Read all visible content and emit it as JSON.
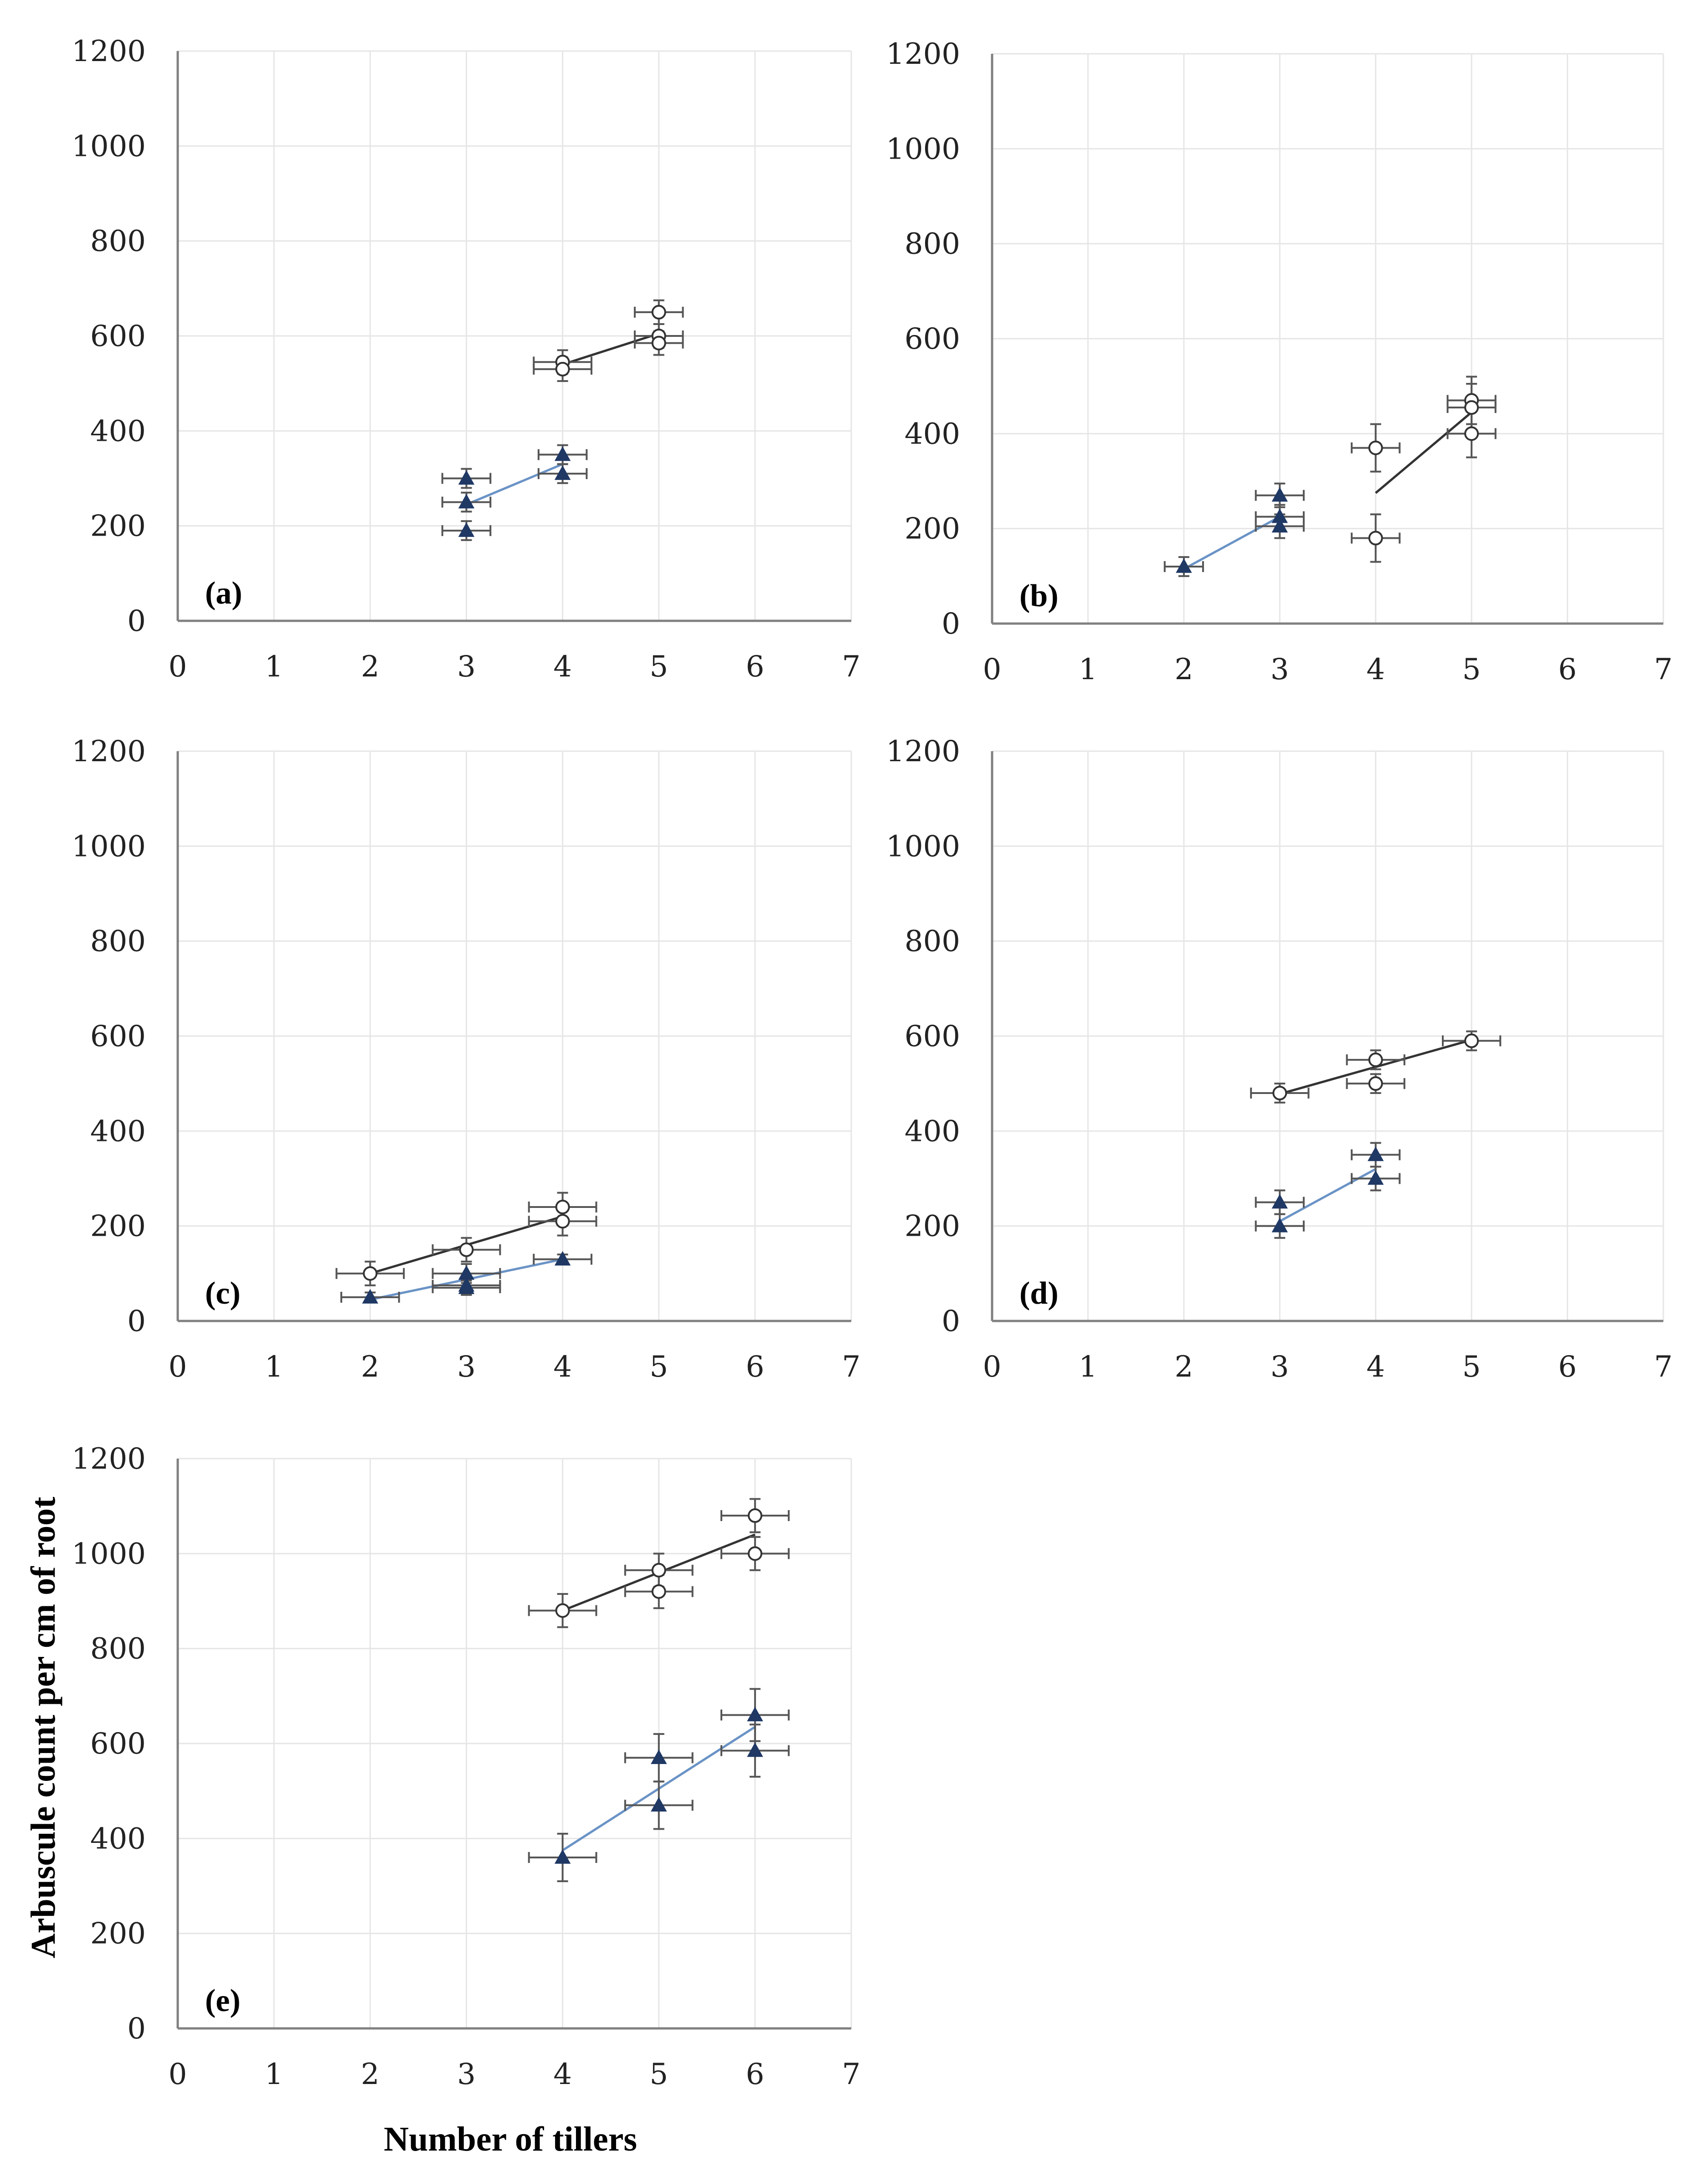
{
  "figure": {
    "ylabel": "Arbuscule count per cm of root",
    "xlabel": "Number of tillers"
  },
  "chart_data": [
    {
      "panel": "(a)",
      "type": "scatter",
      "xlim": [
        0,
        7
      ],
      "ylim": [
        0,
        1200
      ],
      "x_ticks": [
        "0",
        "1",
        "2",
        "3",
        "4",
        "5",
        "6",
        "7"
      ],
      "y_ticks": [
        "0",
        "200",
        "400",
        "600",
        "800",
        "1000",
        "1200"
      ],
      "grid": true,
      "series": [
        {
          "name": "open-circles",
          "marker": "circle-open",
          "color": "#333333",
          "points": [
            {
              "x": 4,
              "y": 545,
              "xerr": 0.3,
              "yerr": 25
            },
            {
              "x": 4,
              "y": 530,
              "xerr": 0.3,
              "yerr": 25
            },
            {
              "x": 5,
              "y": 650,
              "xerr": 0.25,
              "yerr": 25
            },
            {
              "x": 5,
              "y": 600,
              "xerr": 0.25,
              "yerr": 25
            },
            {
              "x": 5,
              "y": 585,
              "xerr": 0.25,
              "yerr": 25
            }
          ],
          "fit": [
            [
              4,
              540
            ],
            [
              5,
              605
            ]
          ]
        },
        {
          "name": "filled-triangles",
          "marker": "triangle-filled",
          "color": "#1f3864",
          "points": [
            {
              "x": 3,
              "y": 300,
              "xerr": 0.25,
              "yerr": 20
            },
            {
              "x": 3,
              "y": 250,
              "xerr": 0.25,
              "yerr": 20
            },
            {
              "x": 3,
              "y": 190,
              "xerr": 0.25,
              "yerr": 20
            },
            {
              "x": 4,
              "y": 350,
              "xerr": 0.25,
              "yerr": 20
            },
            {
              "x": 4,
              "y": 310,
              "xerr": 0.25,
              "yerr": 20
            }
          ],
          "fit": [
            [
              3,
              245
            ],
            [
              4,
              330
            ]
          ]
        }
      ]
    },
    {
      "panel": "(b)",
      "type": "scatter",
      "xlim": [
        0,
        7
      ],
      "ylim": [
        0,
        1200
      ],
      "x_ticks": [
        "0",
        "1",
        "2",
        "3",
        "4",
        "5",
        "6",
        "7"
      ],
      "y_ticks": [
        "0",
        "200",
        "400",
        "600",
        "800",
        "1000",
        "1200"
      ],
      "grid": true,
      "series": [
        {
          "name": "open-circles",
          "marker": "circle-open",
          "color": "#333333",
          "points": [
            {
              "x": 4,
              "y": 370,
              "xerr": 0.25,
              "yerr": 50
            },
            {
              "x": 4,
              "y": 180,
              "xerr": 0.25,
              "yerr": 50
            },
            {
              "x": 5,
              "y": 470,
              "xerr": 0.25,
              "yerr": 50
            },
            {
              "x": 5,
              "y": 455,
              "xerr": 0.25,
              "yerr": 50
            },
            {
              "x": 5,
              "y": 400,
              "xerr": 0.25,
              "yerr": 50
            }
          ],
          "fit": [
            [
              4,
              275
            ],
            [
              5,
              445
            ]
          ]
        },
        {
          "name": "filled-triangles",
          "marker": "triangle-filled",
          "color": "#1f3864",
          "points": [
            {
              "x": 2,
              "y": 120,
              "xerr": 0.2,
              "yerr": 20
            },
            {
              "x": 3,
              "y": 270,
              "xerr": 0.25,
              "yerr": 25
            },
            {
              "x": 3,
              "y": 225,
              "xerr": 0.25,
              "yerr": 25
            },
            {
              "x": 3,
              "y": 205,
              "xerr": 0.25,
              "yerr": 25
            }
          ],
          "fit": [
            [
              2,
              115
            ],
            [
              3,
              225
            ]
          ]
        }
      ]
    },
    {
      "panel": "(c)",
      "type": "scatter",
      "xlim": [
        0,
        7
      ],
      "ylim": [
        0,
        1200
      ],
      "x_ticks": [
        "0",
        "1",
        "2",
        "3",
        "4",
        "5",
        "6",
        "7"
      ],
      "y_ticks": [
        "0",
        "200",
        "400",
        "600",
        "800",
        "1000",
        "1200"
      ],
      "grid": true,
      "series": [
        {
          "name": "open-circles",
          "marker": "circle-open",
          "color": "#333333",
          "points": [
            {
              "x": 2,
              "y": 100,
              "xerr": 0.35,
              "yerr": 25
            },
            {
              "x": 3,
              "y": 150,
              "xerr": 0.35,
              "yerr": 25
            },
            {
              "x": 4,
              "y": 240,
              "xerr": 0.35,
              "yerr": 30
            },
            {
              "x": 4,
              "y": 210,
              "xerr": 0.35,
              "yerr": 30
            }
          ],
          "fit": [
            [
              2,
              100
            ],
            [
              4,
              220
            ]
          ]
        },
        {
          "name": "filled-triangles",
          "marker": "triangle-filled",
          "color": "#1f3864",
          "points": [
            {
              "x": 2,
              "y": 50,
              "xerr": 0.3,
              "yerr": 10
            },
            {
              "x": 3,
              "y": 100,
              "xerr": 0.35,
              "yerr": 20
            },
            {
              "x": 3,
              "y": 75,
              "xerr": 0.35,
              "yerr": 20
            },
            {
              "x": 3,
              "y": 70,
              "xerr": 0.35,
              "yerr": 15
            },
            {
              "x": 4,
              "y": 130,
              "xerr": 0.3,
              "yerr": 10
            }
          ],
          "fit": [
            [
              2,
              45
            ],
            [
              4,
              130
            ]
          ]
        }
      ]
    },
    {
      "panel": "(d)",
      "type": "scatter",
      "xlim": [
        0,
        7
      ],
      "ylim": [
        0,
        1200
      ],
      "x_ticks": [
        "0",
        "1",
        "2",
        "3",
        "4",
        "5",
        "6",
        "7"
      ],
      "y_ticks": [
        "0",
        "200",
        "400",
        "600",
        "800",
        "1000",
        "1200"
      ],
      "grid": true,
      "series": [
        {
          "name": "open-circles",
          "marker": "circle-open",
          "color": "#333333",
          "points": [
            {
              "x": 3,
              "y": 480,
              "xerr": 0.3,
              "yerr": 20
            },
            {
              "x": 4,
              "y": 550,
              "xerr": 0.3,
              "yerr": 20
            },
            {
              "x": 4,
              "y": 500,
              "xerr": 0.3,
              "yerr": 20
            },
            {
              "x": 5,
              "y": 590,
              "xerr": 0.3,
              "yerr": 20
            }
          ],
          "fit": [
            [
              3,
              478
            ],
            [
              5,
              592
            ]
          ]
        },
        {
          "name": "filled-triangles",
          "marker": "triangle-filled",
          "color": "#1f3864",
          "points": [
            {
              "x": 3,
              "y": 250,
              "xerr": 0.25,
              "yerr": 25
            },
            {
              "x": 3,
              "y": 200,
              "xerr": 0.25,
              "yerr": 25
            },
            {
              "x": 4,
              "y": 350,
              "xerr": 0.25,
              "yerr": 25
            },
            {
              "x": 4,
              "y": 300,
              "xerr": 0.25,
              "yerr": 25
            }
          ],
          "fit": [
            [
              3,
              210
            ],
            [
              4,
              320
            ]
          ]
        }
      ]
    },
    {
      "panel": "(e)",
      "type": "scatter",
      "xlim": [
        0,
        7
      ],
      "ylim": [
        0,
        1200
      ],
      "x_ticks": [
        "0",
        "1",
        "2",
        "3",
        "4",
        "5",
        "6",
        "7"
      ],
      "y_ticks": [
        "0",
        "200",
        "400",
        "600",
        "800",
        "1000",
        "1200"
      ],
      "grid": true,
      "series": [
        {
          "name": "open-circles",
          "marker": "circle-open",
          "color": "#333333",
          "points": [
            {
              "x": 4,
              "y": 880,
              "xerr": 0.35,
              "yerr": 35
            },
            {
              "x": 5,
              "y": 965,
              "xerr": 0.35,
              "yerr": 35
            },
            {
              "x": 5,
              "y": 920,
              "xerr": 0.35,
              "yerr": 35
            },
            {
              "x": 6,
              "y": 1080,
              "xerr": 0.35,
              "yerr": 35
            },
            {
              "x": 6,
              "y": 1000,
              "xerr": 0.35,
              "yerr": 35
            }
          ],
          "fit": [
            [
              4,
              880
            ],
            [
              6,
              1040
            ]
          ]
        },
        {
          "name": "filled-triangles",
          "marker": "triangle-filled",
          "color": "#1f3864",
          "points": [
            {
              "x": 4,
              "y": 360,
              "xerr": 0.35,
              "yerr": 50
            },
            {
              "x": 5,
              "y": 570,
              "xerr": 0.35,
              "yerr": 50
            },
            {
              "x": 5,
              "y": 470,
              "xerr": 0.35,
              "yerr": 50
            },
            {
              "x": 6,
              "y": 660,
              "xerr": 0.35,
              "yerr": 55
            },
            {
              "x": 6,
              "y": 585,
              "xerr": 0.35,
              "yerr": 55
            }
          ],
          "fit": [
            [
              4,
              375
            ],
            [
              6,
              635
            ]
          ]
        }
      ]
    }
  ]
}
